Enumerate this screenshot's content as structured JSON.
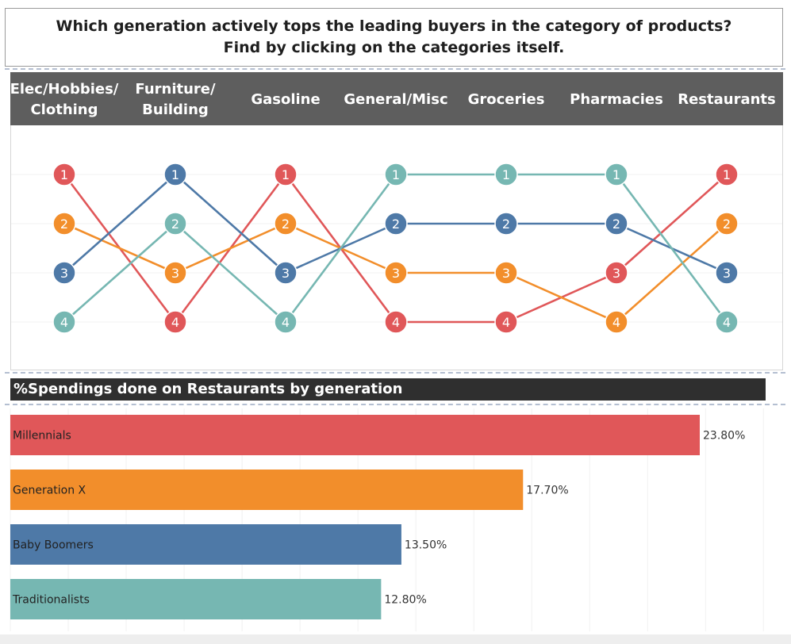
{
  "header": {
    "line1": "Which generation actively tops the leading buyers in the category of products?",
    "line2": "Find by clicking on the categories itself."
  },
  "colors": {
    "Millennials": "#e05759",
    "Generation X": "#f28e2b",
    "Baby Boomers": "#4e79a7",
    "Traditionalists": "#76b7b2"
  },
  "chart_data": [
    {
      "type": "line",
      "title": "",
      "categories": [
        [
          "Elec/Hobbies/",
          "Clothing"
        ],
        [
          "Furniture/",
          "Building"
        ],
        [
          "Gasoline"
        ],
        [
          "General/Misc"
        ],
        [
          "Groceries"
        ],
        [
          "Pharmacies"
        ],
        [
          "Restaurants"
        ]
      ],
      "y_type": "rank",
      "ylim": [
        1,
        4
      ],
      "series": [
        {
          "name": "Millennials",
          "values": [
            1,
            4,
            1,
            4,
            4,
            3,
            1
          ]
        },
        {
          "name": "Generation X",
          "values": [
            2,
            3,
            2,
            3,
            3,
            4,
            2
          ]
        },
        {
          "name": "Baby Boomers",
          "values": [
            3,
            1,
            3,
            2,
            2,
            2,
            3
          ]
        },
        {
          "name": "Traditionalists",
          "values": [
            4,
            2,
            4,
            1,
            1,
            1,
            4
          ]
        }
      ]
    },
    {
      "type": "bar",
      "orientation": "horizontal",
      "title": "%Spendings done on Restaurants by generation",
      "categories": [
        "Millennials",
        "Generation X",
        "Baby Boomers",
        "Traditionalists"
      ],
      "values": [
        23.8,
        17.7,
        13.5,
        12.8
      ],
      "labels": [
        "23.80%",
        "17.70%",
        "13.50%",
        "12.80%"
      ],
      "xlim": [
        0,
        26
      ]
    }
  ]
}
